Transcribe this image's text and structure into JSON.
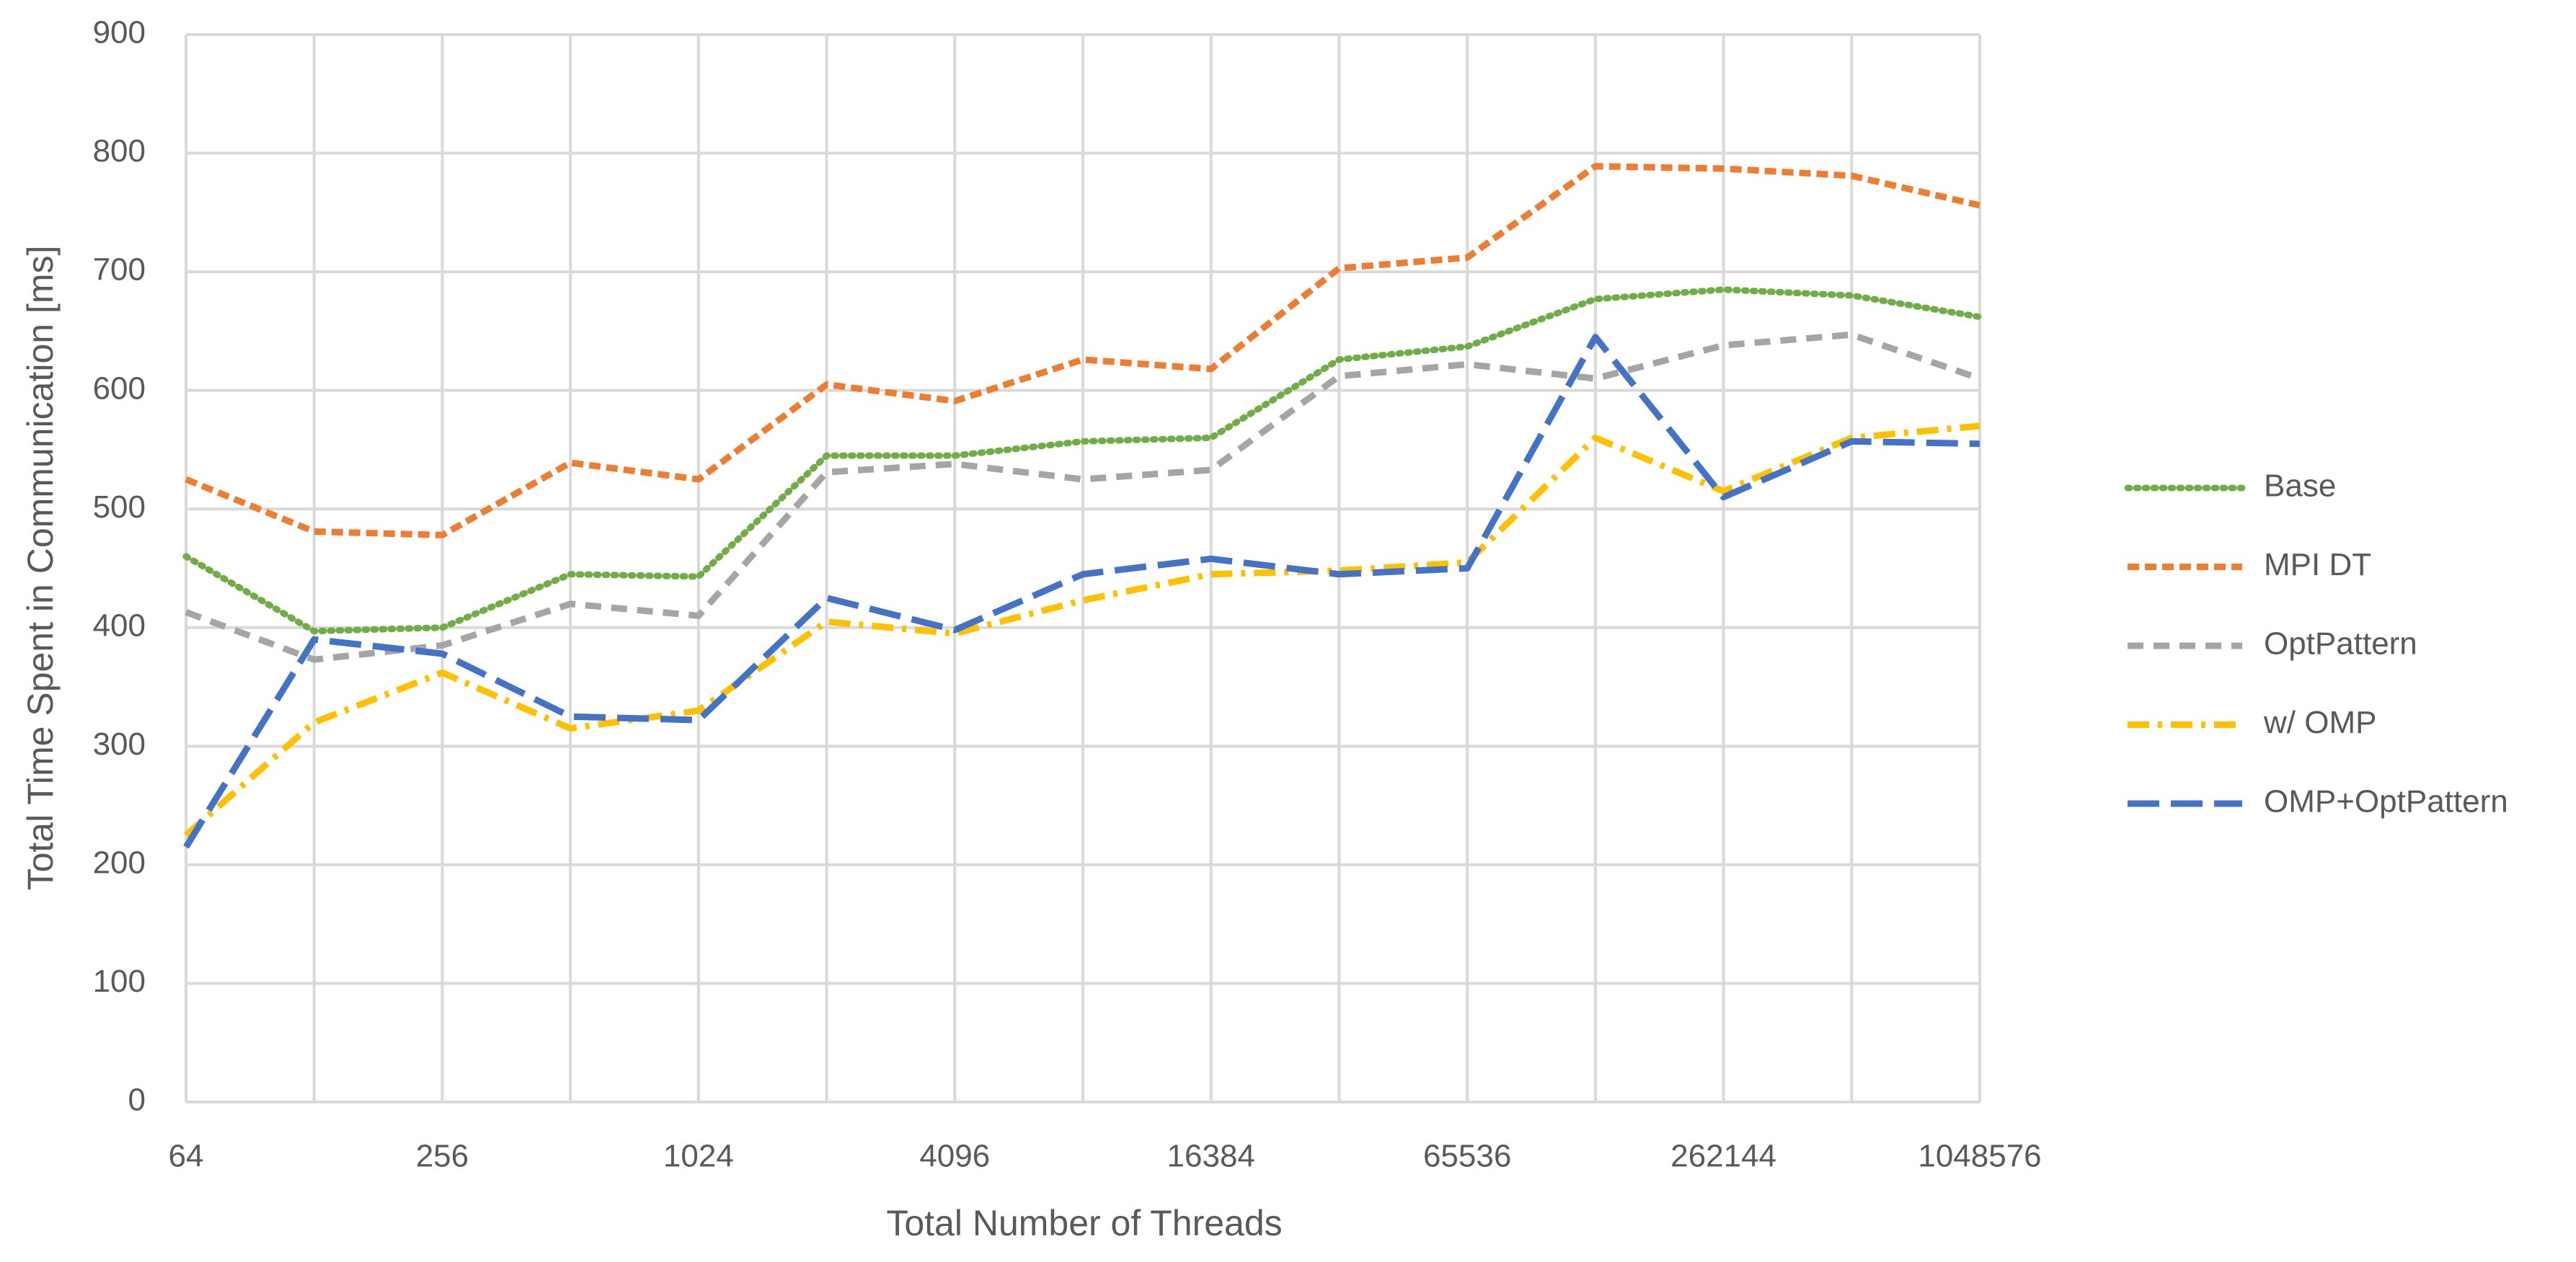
{
  "chart_data": {
    "type": "line",
    "x_label": "Total Number of Threads",
    "y_label": "Total Time Spent in Communication [ms]",
    "categories": [
      "64",
      null,
      "256",
      null,
      "1024",
      null,
      "4096",
      null,
      "16384",
      null,
      "65536",
      null,
      "262144",
      null,
      "1048576"
    ],
    "series": [
      {
        "name": "Base",
        "color": "#70ad47",
        "values": [
          460,
          397,
          400,
          445,
          443,
          545,
          545,
          557,
          560,
          626,
          637,
          677,
          685,
          680,
          662
        ]
      },
      {
        "name": "MPI DT",
        "color": "#ed7d31",
        "values": [
          525,
          481,
          478,
          539,
          525,
          605,
          591,
          626,
          618,
          703,
          712,
          789,
          787,
          781,
          756
        ]
      },
      {
        "name": "OptPattern",
        "color": "#a5a5a5",
        "values": [
          413,
          373,
          385,
          420,
          410,
          531,
          538,
          525,
          533,
          612,
          622,
          610,
          638,
          647,
          610
        ]
      },
      {
        "name": "w/ OMP",
        "color": "#ffc000",
        "values": [
          225,
          320,
          362,
          315,
          330,
          405,
          395,
          423,
          445,
          448,
          455,
          560,
          515,
          560,
          570
        ]
      },
      {
        "name": "OMP+OptPattern",
        "color": "#4472c4",
        "values": [
          215,
          390,
          378,
          325,
          322,
          425,
          398,
          445,
          458,
          445,
          450,
          645,
          510,
          557,
          555
        ]
      }
    ],
    "ylim": [
      0,
      900
    ],
    "yticks": [
      0,
      100,
      200,
      300,
      400,
      500,
      600,
      700,
      800,
      900
    ],
    "grid": true,
    "legend": "right"
  }
}
